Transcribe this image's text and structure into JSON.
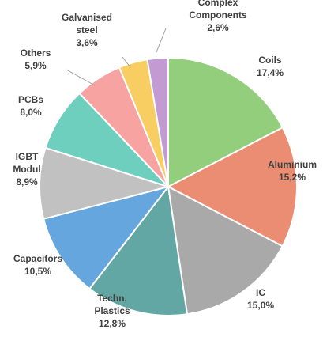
{
  "chart_data": {
    "type": "pie",
    "title": "",
    "slices": [
      {
        "label_lines": [
          "Coils"
        ],
        "value_text": "17,4%",
        "value": 17.4,
        "color": "#93ce7c"
      },
      {
        "label_lines": [
          "Aluminium"
        ],
        "value_text": "15,2%",
        "value": 15.2,
        "color": "#ea8d72"
      },
      {
        "label_lines": [
          "IC"
        ],
        "value_text": "15,0%",
        "value": 15.0,
        "color": "#a9a9a9"
      },
      {
        "label_lines": [
          "Techn.",
          "Plastics"
        ],
        "value_text": "12,8%",
        "value": 12.8,
        "color": "#62a7a4"
      },
      {
        "label_lines": [
          "Capacitors"
        ],
        "value_text": "10,5%",
        "value": 10.5,
        "color": "#64a6dd"
      },
      {
        "label_lines": [
          "IGBT",
          "Modul"
        ],
        "value_text": "8,9%",
        "value": 8.9,
        "color": "#c1c1c1"
      },
      {
        "label_lines": [
          "PCBs"
        ],
        "value_text": "8,0%",
        "value": 8.0,
        "color": "#6ecfbf"
      },
      {
        "label_lines": [
          "Others"
        ],
        "value_text": "5,9%",
        "value": 5.9,
        "color": "#f6a3a1"
      },
      {
        "label_lines": [
          "Galvanised",
          "steel"
        ],
        "value_text": "3,6%",
        "value": 3.6,
        "color": "#f8cd62"
      },
      {
        "label_lines": [
          "Complex",
          "Components"
        ],
        "value_text": "2,6%",
        "value": 2.6,
        "color": "#c49ad2"
      }
    ]
  }
}
